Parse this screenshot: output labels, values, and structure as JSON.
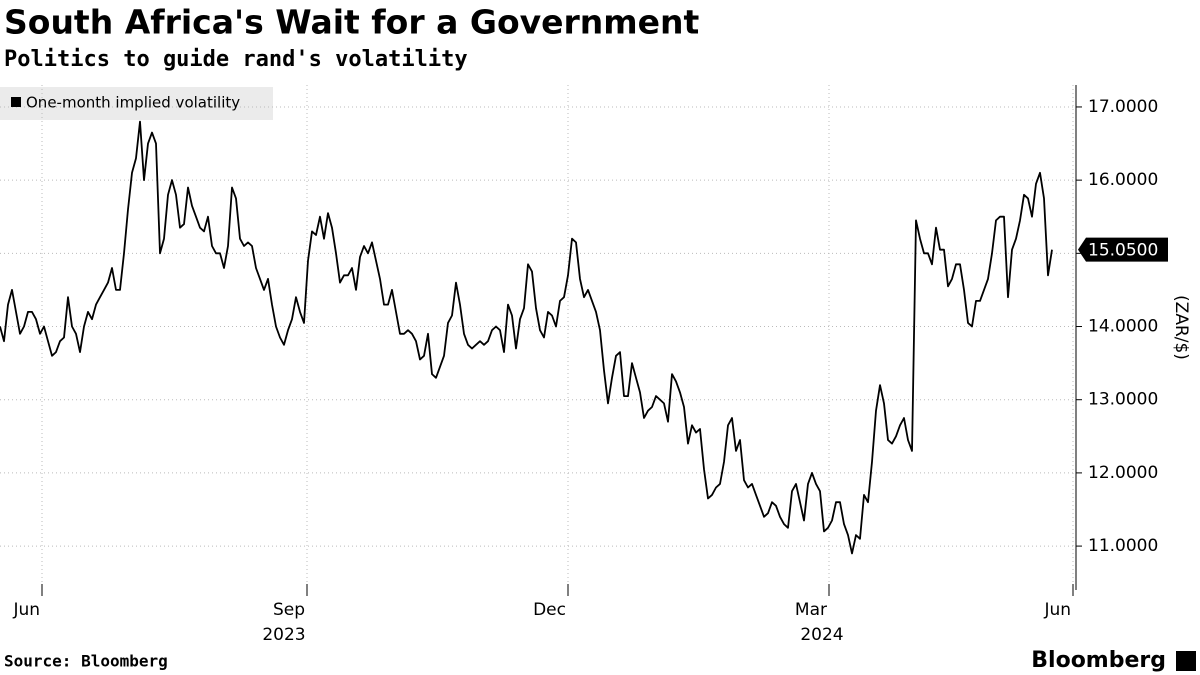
{
  "chart_data": {
    "type": "line",
    "title": "South Africa's Wait for a Government",
    "subtitle": "Politics to guide rand's volatility",
    "y_label": "(ZAR/$)",
    "source": "Source: Bloomberg",
    "brand": "Bloomberg",
    "xlim": [
      0,
      269
    ],
    "xticks": [
      {
        "value": 10.5,
        "label": "Jun"
      },
      {
        "value": 76.75,
        "label": "Sep"
      },
      {
        "value": 142,
        "label": "Dec"
      },
      {
        "value": 207.25,
        "label": "Mar"
      },
      {
        "value": 268.25,
        "label": "Jun"
      }
    ],
    "xgroups": [
      {
        "value": 71,
        "label": "2023"
      },
      {
        "value": 205.5,
        "label": "2024"
      }
    ],
    "ylim": [
      10.4,
      17.3
    ],
    "yticks": [
      {
        "value": 11,
        "label": "11.0000"
      },
      {
        "value": 12,
        "label": "12.0000"
      },
      {
        "value": 13,
        "label": "13.0000"
      },
      {
        "value": 14,
        "label": "14.0000"
      },
      {
        "value": 15,
        "label": "15.0000"
      },
      {
        "value": 16,
        "label": "16.0000"
      },
      {
        "value": 17,
        "label": "17.0000"
      }
    ],
    "grid": true,
    "legend": "top-left",
    "series": [
      {
        "name": "One-month implied volatility",
        "color": "#000000",
        "values": [
          14.0,
          13.8,
          14.3,
          14.5,
          14.2,
          13.9,
          14.0,
          14.2,
          14.2,
          14.1,
          13.9,
          14.0,
          13.8,
          13.6,
          13.65,
          13.8,
          13.85,
          14.4,
          14.0,
          13.9,
          13.65,
          14.0,
          14.2,
          14.1,
          14.3,
          14.4,
          14.5,
          14.6,
          14.8,
          14.5,
          14.5,
          15.0,
          15.6,
          16.1,
          16.3,
          16.8,
          16.0,
          16.5,
          16.65,
          16.5,
          15.0,
          15.2,
          15.8,
          16.0,
          15.8,
          15.35,
          15.4,
          15.9,
          15.65,
          15.5,
          15.35,
          15.3,
          15.5,
          15.1,
          15.0,
          15.0,
          14.8,
          15.1,
          15.9,
          15.75,
          15.2,
          15.1,
          15.15,
          15.1,
          14.8,
          14.65,
          14.5,
          14.65,
          14.3,
          14.0,
          13.85,
          13.75,
          13.95,
          14.1,
          14.4,
          14.2,
          14.05,
          14.9,
          15.3,
          15.25,
          15.5,
          15.2,
          15.55,
          15.35,
          15.0,
          14.6,
          14.7,
          14.7,
          14.8,
          14.5,
          14.95,
          15.1,
          15.0,
          15.15,
          14.9,
          14.65,
          14.3,
          14.3,
          14.5,
          14.2,
          13.9,
          13.9,
          13.95,
          13.9,
          13.8,
          13.55,
          13.6,
          13.9,
          13.35,
          13.3,
          13.45,
          13.6,
          14.05,
          14.15,
          14.6,
          14.3,
          13.9,
          13.75,
          13.7,
          13.75,
          13.8,
          13.75,
          13.8,
          13.95,
          14.0,
          13.95,
          13.65,
          14.3,
          14.15,
          13.7,
          14.1,
          14.25,
          14.85,
          14.75,
          14.25,
          13.95,
          13.85,
          14.2,
          14.15,
          14.0,
          14.35,
          14.4,
          14.7,
          15.2,
          15.15,
          14.65,
          14.4,
          14.5,
          14.35,
          14.2,
          13.95,
          13.4,
          12.95,
          13.3,
          13.6,
          13.65,
          13.05,
          13.05,
          13.5,
          13.3,
          13.1,
          12.75,
          12.85,
          12.9,
          13.05,
          13.0,
          12.95,
          12.7,
          13.35,
          13.25,
          13.1,
          12.9,
          12.4,
          12.65,
          12.55,
          12.6,
          12.05,
          11.65,
          11.7,
          11.8,
          11.85,
          12.15,
          12.65,
          12.75,
          12.3,
          12.45,
          11.9,
          11.8,
          11.85,
          11.7,
          11.55,
          11.4,
          11.45,
          11.6,
          11.55,
          11.4,
          11.3,
          11.25,
          11.75,
          11.85,
          11.6,
          11.35,
          11.85,
          12.0,
          11.85,
          11.75,
          11.2,
          11.25,
          11.35,
          11.6,
          11.6,
          11.3,
          11.15,
          10.9,
          11.15,
          11.1,
          11.7,
          11.6,
          12.15,
          12.85,
          13.2,
          12.95,
          12.45,
          12.4,
          12.5,
          12.65,
          12.75,
          12.45,
          12.3,
          15.45,
          15.2,
          15.0,
          15.0,
          14.85,
          15.35,
          15.05,
          15.05,
          14.55,
          14.65,
          14.85,
          14.85,
          14.5,
          14.05,
          14.0,
          14.35,
          14.35,
          14.5,
          14.65,
          15.0,
          15.45,
          15.5,
          15.5,
          14.4,
          15.05,
          15.2,
          15.45,
          15.8,
          15.75,
          15.5,
          15.95,
          16.1,
          15.75,
          14.7,
          15.05
        ]
      }
    ],
    "last_value_label": "15.0500"
  }
}
